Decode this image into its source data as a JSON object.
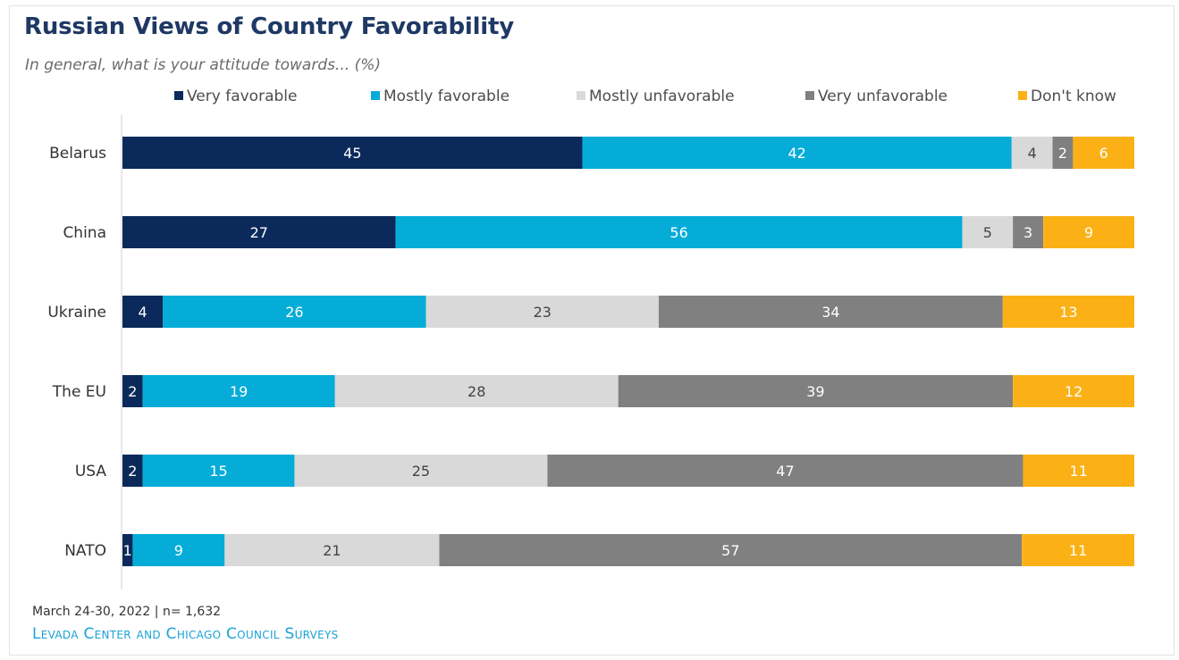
{
  "title": "Russian Views of Country Favorability",
  "subtitle": "In general, what is your attitude towards... (%)",
  "footer": {
    "date_note": "March 24-30, 2022 | n= 1,632",
    "source": "Levada Center and Chicago Council Surveys"
  },
  "colors": {
    "very_favorable": "#0b2a5b",
    "mostly_favorable": "#05acd8",
    "mostly_unfavorable": "#d9d9d9",
    "very_unfavorable": "#808080",
    "dont_know": "#fbb116",
    "title": "#1f3864",
    "source": "#1aa3d6"
  },
  "chart_data": {
    "type": "bar",
    "orientation": "horizontal",
    "stacked": true,
    "categories": [
      "Belarus",
      "China",
      "Ukraine",
      "The EU",
      "USA",
      "NATO"
    ],
    "series": [
      {
        "name": "Very favorable",
        "color": "#0b2a5b",
        "label_color": "#ffffff",
        "values": [
          45,
          27,
          4,
          2,
          2,
          1
        ]
      },
      {
        "name": "Mostly favorable",
        "color": "#05acd8",
        "label_color": "#ffffff",
        "values": [
          42,
          56,
          26,
          19,
          15,
          9
        ]
      },
      {
        "name": "Mostly unfavorable",
        "color": "#d9d9d9",
        "label_color": "#444444",
        "values": [
          4,
          5,
          23,
          28,
          25,
          21
        ]
      },
      {
        "name": "Very unfavorable",
        "color": "#808080",
        "label_color": "#ffffff",
        "values": [
          2,
          3,
          34,
          39,
          47,
          57
        ]
      },
      {
        "name": "Don't know",
        "color": "#fbb116",
        "label_color": "#ffffff",
        "values": [
          6,
          9,
          13,
          12,
          11,
          11
        ]
      }
    ],
    "xlim": [
      0,
      100
    ],
    "legend_position": "top",
    "grid": false
  }
}
